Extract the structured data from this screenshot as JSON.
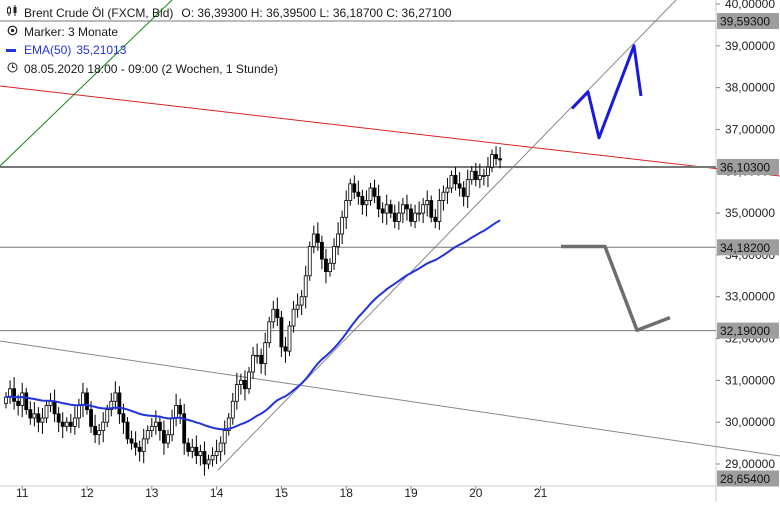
{
  "legend": {
    "instrument": "Brent Crude Öl (FXCM, Bid)",
    "ohlc": "O: 36,39300  H: 36,39500  L: 36,18700  C: 36,27100",
    "marker": "Marker: 3 Monate",
    "ema_label": "EMA(50)",
    "ema_value": "35,21013",
    "period": "08.05.2020 18:00 - 09:00  (2 Wochen, 1 Stunde)"
  },
  "colors": {
    "candle": "#000000",
    "ema": "#2233dd",
    "red_line": "#dd2222",
    "green_line": "#118811",
    "gray_line": "#888888",
    "horizontal": "#777777",
    "projection_up": "#1a1add",
    "projection_down": "#6e6e6e",
    "badge": "#9e9e9e"
  },
  "price_labels": [
    {
      "text": "39,59300",
      "value": 39.593
    },
    {
      "text": "36,10300",
      "value": 36.103
    },
    {
      "text": "34,18200",
      "value": 34.182
    },
    {
      "text": "32,19000",
      "value": 32.19
    },
    {
      "text": "28,65400",
      "value": 28.654
    }
  ],
  "chart_data": {
    "type": "candlestick",
    "ylim": [
      28.5,
      40.0
    ],
    "y_ticks": [
      "29,00000",
      "30,00000",
      "31,00000",
      "32,00000",
      "33,00000",
      "34,00000",
      "35,00000",
      "36,00000",
      "37,00000",
      "38,00000",
      "39,00000",
      "40,00000"
    ],
    "y_tick_values": [
      29,
      30,
      31,
      32,
      33,
      34,
      35,
      36,
      37,
      38,
      39,
      40
    ],
    "x_ticks": [
      "11",
      "12",
      "13",
      "14",
      "15",
      "18",
      "19",
      "20",
      "21"
    ],
    "x_tick_index": [
      4,
      20,
      36,
      52,
      68,
      84,
      100,
      116,
      132
    ],
    "ema_period": 50,
    "last_close": 36.271,
    "close_series": [
      30.6,
      30.8,
      30.5,
      30.4,
      30.7,
      30.3,
      30.1,
      30.2,
      30.0,
      30.1,
      30.4,
      30.5,
      30.2,
      30.0,
      29.9,
      30.0,
      29.9,
      30.1,
      30.4,
      30.7,
      30.3,
      29.9,
      29.7,
      29.8,
      30.0,
      30.3,
      30.5,
      30.7,
      30.2,
      30.0,
      29.6,
      29.5,
      29.4,
      29.3,
      29.6,
      29.8,
      29.9,
      30.0,
      29.8,
      29.5,
      29.7,
      30.1,
      30.4,
      30.2,
      29.5,
      29.3,
      29.4,
      29.2,
      29.3,
      29.0,
      29.1,
      29.2,
      29.3,
      29.5,
      29.8,
      30.1,
      30.5,
      30.9,
      31.0,
      30.8,
      31.2,
      31.6,
      31.6,
      31.4,
      31.9,
      32.4,
      32.7,
      32.5,
      31.8,
      31.7,
      32.3,
      32.7,
      32.8,
      33.0,
      33.5,
      34.2,
      34.5,
      34.3,
      33.9,
      33.6,
      33.8,
      34.2,
      34.5,
      34.9,
      35.3,
      35.7,
      35.5,
      35.4,
      35.2,
      35.3,
      35.6,
      35.4,
      35.1,
      35.0,
      35.2,
      35.0,
      34.8,
      35.0,
      35.2,
      35.1,
      34.8,
      35.0,
      35.0,
      35.2,
      35.3,
      34.9,
      34.8,
      35.3,
      35.5,
      35.6,
      35.9,
      35.7,
      35.6,
      35.4,
      35.8,
      36.0,
      35.8,
      35.9,
      35.9,
      36.1,
      36.4,
      36.3,
      36.271
    ],
    "annotations": [
      {
        "kind": "horizontal",
        "value": 39.593
      },
      {
        "kind": "horizontal",
        "value": 36.103
      },
      {
        "kind": "horizontal",
        "value": 34.182
      },
      {
        "kind": "horizontal",
        "value": 32.19
      },
      {
        "kind": "projection",
        "direction": "up",
        "path": [
          37.5,
          37.9,
          36.8,
          39.0,
          37.8
        ]
      },
      {
        "kind": "projection",
        "direction": "down",
        "path": [
          34.2,
          34.2,
          32.2,
          32.5
        ]
      }
    ]
  }
}
